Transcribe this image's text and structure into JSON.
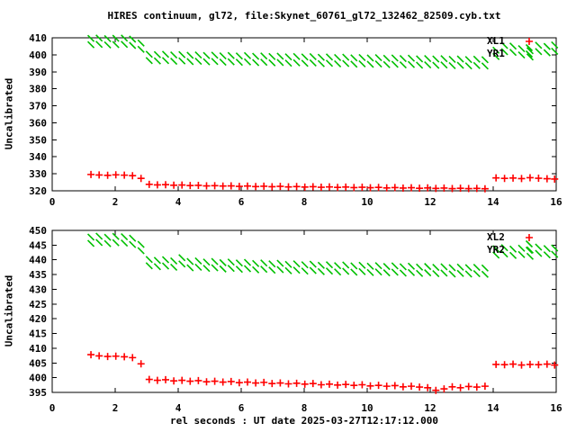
{
  "title": "HIRES continuum, gl72, file:Skynet_60761_gl72_132462_82509.cyb.txt",
  "xlabel": "rel seconds : UT date 2025-03-27T12:17:12.000",
  "colors": {
    "xl_series": "#ff0000",
    "yr_series": "#00c000",
    "text": "#000000",
    "background": "#ffffff"
  },
  "chart_data": [
    {
      "type": "scatter",
      "panel": "top",
      "ylabel": "Uncalibrated",
      "xlim": [
        0,
        16
      ],
      "xtick_step": 2,
      "ylim": [
        320,
        410
      ],
      "ytick_step": 10,
      "grid": false,
      "legend_position": "top-right-inside",
      "x": [
        1.23,
        1.49,
        1.76,
        2.02,
        2.29,
        2.55,
        2.82,
        3.08,
        3.34,
        3.6,
        3.86,
        4.12,
        4.38,
        4.64,
        4.9,
        5.16,
        5.42,
        5.68,
        5.94,
        6.2,
        6.46,
        6.72,
        6.98,
        7.24,
        7.5,
        7.76,
        8.02,
        8.28,
        8.54,
        8.8,
        9.06,
        9.32,
        9.58,
        9.84,
        10.1,
        10.36,
        10.62,
        10.88,
        11.14,
        11.4,
        11.66,
        11.92,
        12.18,
        12.44,
        12.7,
        12.96,
        13.22,
        13.48,
        13.74,
        14.09,
        14.36,
        14.63,
        14.9,
        15.17,
        15.44,
        15.71,
        15.95
      ],
      "series": [
        {
          "name": "XL1",
          "marker": "plus",
          "color": "#ff0000",
          "values": [
            329.6,
            329.3,
            329.1,
            329.4,
            329.2,
            328.9,
            327.3,
            323.8,
            323.5,
            323.6,
            323.3,
            323.4,
            323.1,
            323.2,
            322.9,
            323.0,
            322.8,
            322.9,
            322.6,
            322.8,
            322.5,
            322.7,
            322.4,
            322.6,
            322.3,
            322.5,
            322.2,
            322.4,
            322.1,
            322.3,
            322.0,
            322.2,
            321.9,
            322.1,
            321.8,
            322.0,
            321.7,
            321.9,
            321.6,
            321.8,
            321.5,
            321.7,
            321.4,
            321.6,
            321.3,
            321.5,
            321.3,
            321.4,
            321.2,
            327.6,
            327.3,
            327.5,
            327.2,
            327.7,
            327.4,
            327.1,
            326.9
          ]
        },
        {
          "name": "YR1",
          "marker": "cross",
          "color": "#00c000",
          "values": [
            405.9,
            406.1,
            405.8,
            406.0,
            406.1,
            405.5,
            403.2,
            396.6,
            396.4,
            396.6,
            396.2,
            396.4,
            396.0,
            396.2,
            395.9,
            396.1,
            395.7,
            395.9,
            395.6,
            395.8,
            395.4,
            395.6,
            395.3,
            395.5,
            395.1,
            395.3,
            395.0,
            395.2,
            394.8,
            395.0,
            394.7,
            394.9,
            394.5,
            394.7,
            394.4,
            394.6,
            394.2,
            394.4,
            394.1,
            394.3,
            393.9,
            394.1,
            393.8,
            394.0,
            393.6,
            393.8,
            393.5,
            393.7,
            393.4,
            399.0,
            401.8,
            401.4,
            399.9,
            398.7,
            401.9,
            401.2,
            402.1
          ]
        }
      ]
    },
    {
      "type": "scatter",
      "panel": "bottom",
      "ylabel": "Uncalibrated",
      "xlim": [
        0,
        16
      ],
      "xtick_step": 2,
      "ylim": [
        395,
        450
      ],
      "ytick_step": 5,
      "grid": false,
      "legend_position": "top-right-inside",
      "x": [
        1.23,
        1.49,
        1.76,
        2.02,
        2.29,
        2.55,
        2.82,
        3.08,
        3.34,
        3.6,
        3.86,
        4.12,
        4.38,
        4.64,
        4.9,
        5.16,
        5.42,
        5.68,
        5.94,
        6.2,
        6.46,
        6.72,
        6.98,
        7.24,
        7.5,
        7.76,
        8.02,
        8.28,
        8.54,
        8.8,
        9.06,
        9.32,
        9.58,
        9.84,
        10.1,
        10.36,
        10.62,
        10.88,
        11.14,
        11.4,
        11.66,
        11.92,
        12.18,
        12.44,
        12.7,
        12.96,
        13.22,
        13.48,
        13.74,
        14.09,
        14.36,
        14.63,
        14.9,
        15.17,
        15.44,
        15.71,
        15.95
      ],
      "series": [
        {
          "name": "XL2",
          "marker": "plus",
          "color": "#ff0000",
          "values": [
            407.8,
            407.4,
            407.2,
            407.3,
            407.1,
            406.8,
            404.7,
            399.4,
            399.1,
            399.3,
            398.9,
            399.1,
            398.8,
            399.0,
            398.6,
            398.8,
            398.5,
            398.7,
            398.3,
            398.5,
            398.2,
            398.4,
            398.0,
            398.2,
            397.9,
            398.1,
            397.8,
            398.0,
            397.6,
            397.8,
            397.5,
            397.7,
            397.4,
            397.6,
            397.2,
            397.4,
            397.1,
            397.3,
            396.9,
            397.1,
            396.8,
            396.6,
            395.7,
            396.2,
            396.9,
            396.6,
            397.0,
            396.8,
            397.1,
            404.5,
            404.4,
            404.6,
            404.3,
            404.5,
            404.4,
            404.6,
            404.3
          ]
        },
        {
          "name": "YR2",
          "marker": "cross",
          "color": "#00c000",
          "values": [
            445.6,
            445.9,
            445.5,
            445.8,
            445.7,
            445.2,
            443.1,
            438.0,
            437.7,
            437.9,
            437.5,
            438.6,
            437.3,
            437.5,
            437.1,
            437.3,
            436.9,
            437.1,
            436.8,
            437.0,
            436.6,
            436.8,
            436.5,
            436.7,
            436.3,
            436.5,
            436.2,
            436.4,
            436.0,
            436.2,
            435.9,
            436.1,
            435.8,
            436.0,
            435.7,
            435.9,
            435.6,
            435.8,
            435.5,
            435.7,
            435.4,
            435.6,
            435.3,
            435.5,
            435.2,
            435.4,
            435.2,
            435.3,
            435.1,
            441.6,
            442.0,
            441.5,
            441.8,
            441.2,
            442.2,
            441.7,
            441.9
          ]
        }
      ]
    }
  ]
}
